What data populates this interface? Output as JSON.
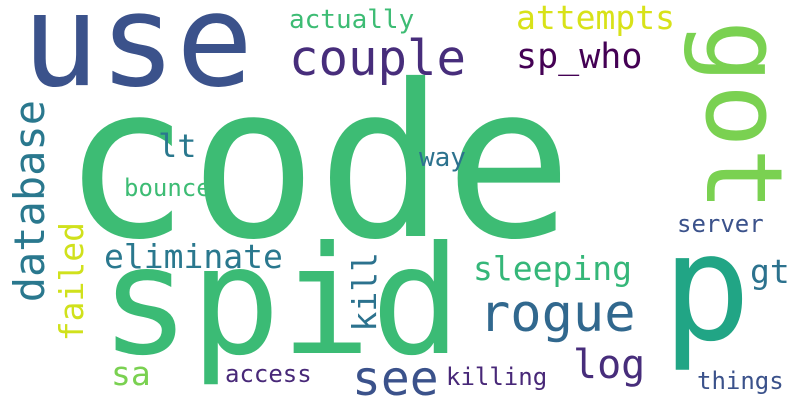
{
  "words": [
    {
      "id": "use",
      "text": "use",
      "color": "#3b528b"
    },
    {
      "id": "code",
      "text": "code",
      "color": "#3dbc74"
    },
    {
      "id": "spid",
      "text": "spid",
      "color": "#3bbb75"
    },
    {
      "id": "p",
      "text": "p",
      "color": "#21a585"
    },
    {
      "id": "got",
      "text": "got",
      "color": "#7ad151"
    },
    {
      "id": "couple",
      "text": "couple",
      "color": "#472d7b"
    },
    {
      "id": "actually",
      "text": "actually",
      "color": "#3dbc74"
    },
    {
      "id": "attempts",
      "text": "attempts",
      "color": "#d8e219"
    },
    {
      "id": "sp_who",
      "text": "sp_who",
      "color": "#440154"
    },
    {
      "id": "database",
      "text": "database",
      "color": "#2a788e"
    },
    {
      "id": "failed",
      "text": "failed",
      "color": "#d0e11c"
    },
    {
      "id": "lt",
      "text": "lt",
      "color": "#2a788e"
    },
    {
      "id": "way",
      "text": "way",
      "color": "#2c728e"
    },
    {
      "id": "bounce",
      "text": "bounce",
      "color": "#3dbc74"
    },
    {
      "id": "eliminate",
      "text": "eliminate",
      "color": "#2a788e"
    },
    {
      "id": "server",
      "text": "server",
      "color": "#3b528b"
    },
    {
      "id": "kill",
      "text": "kill",
      "color": "#2c728e"
    },
    {
      "id": "sleeping",
      "text": "sleeping",
      "color": "#35b779"
    },
    {
      "id": "gt",
      "text": "gt",
      "color": "#2c728e"
    },
    {
      "id": "rogue",
      "text": "rogue",
      "color": "#31688e"
    },
    {
      "id": "see",
      "text": "see",
      "color": "#3b528b"
    },
    {
      "id": "log",
      "text": "log",
      "color": "#472d7b"
    },
    {
      "id": "sa",
      "text": "sa",
      "color": "#7ad151"
    },
    {
      "id": "access",
      "text": "access",
      "color": "#482878"
    },
    {
      "id": "killing",
      "text": "killing",
      "color": "#482878"
    },
    {
      "id": "things",
      "text": "things",
      "color": "#3b528b"
    }
  ]
}
